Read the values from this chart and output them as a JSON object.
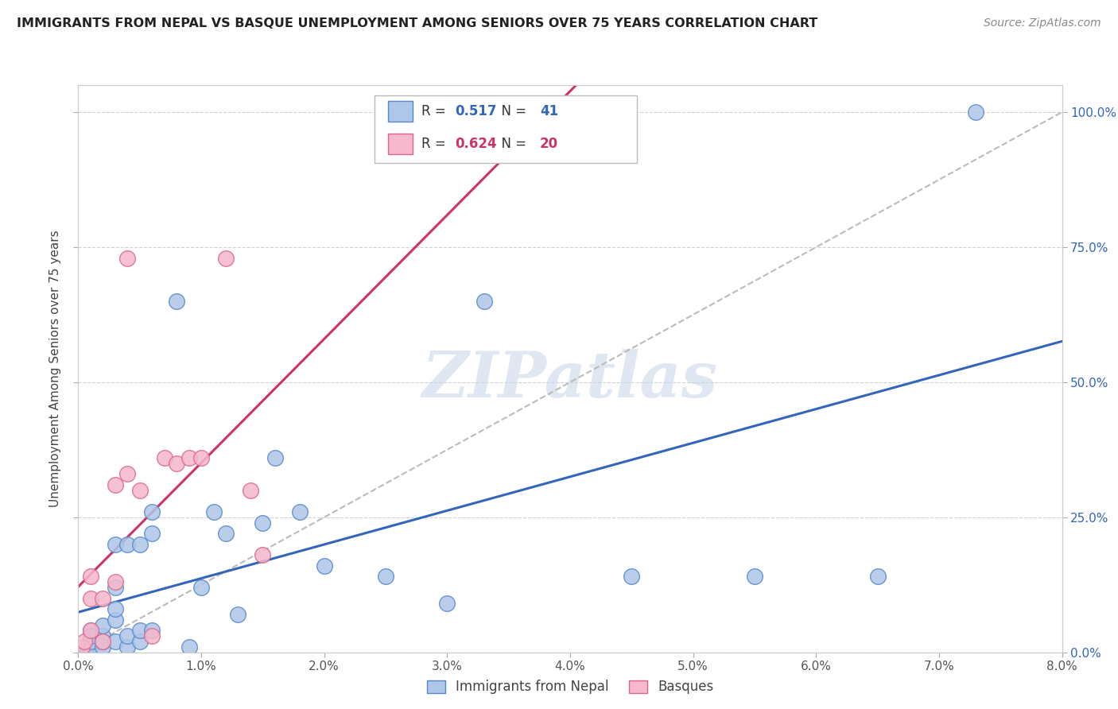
{
  "title": "IMMIGRANTS FROM NEPAL VS BASQUE UNEMPLOYMENT AMONG SENIORS OVER 75 YEARS CORRELATION CHART",
  "source": "Source: ZipAtlas.com",
  "ylabel": "Unemployment Among Seniors over 75 years",
  "xlabel_legend1": "Immigrants from Nepal",
  "xlabel_legend2": "Basques",
  "xmin": 0.0,
  "xmax": 0.08,
  "ymin": 0.0,
  "ymax": 1.05,
  "xticks": [
    0.0,
    0.01,
    0.02,
    0.03,
    0.04,
    0.05,
    0.06,
    0.07,
    0.08
  ],
  "xticklabels": [
    "0.0%",
    "1.0%",
    "2.0%",
    "3.0%",
    "4.0%",
    "5.0%",
    "6.0%",
    "7.0%",
    "8.0%"
  ],
  "yticks": [
    0.0,
    0.25,
    0.5,
    0.75,
    1.0
  ],
  "yticklabels": [
    "",
    "",
    "",
    "",
    ""
  ],
  "yticklabels_right": [
    "0.0%",
    "25.0%",
    "50.0%",
    "75.0%",
    "100.0%"
  ],
  "R_blue": 0.517,
  "N_blue": 41,
  "R_pink": 0.624,
  "N_pink": 20,
  "blue_color": "#aec6e8",
  "blue_edge": "#5588cc",
  "pink_color": "#f5b8cc",
  "pink_edge": "#dd6688",
  "blue_line_color": "#3366bb",
  "pink_line_color": "#cc3366",
  "ref_line_color": "#bbbbbb",
  "watermark": "ZIPatlas",
  "blue_scatter_x": [
    0.0005,
    0.0007,
    0.001,
    0.001,
    0.001,
    0.001,
    0.002,
    0.002,
    0.002,
    0.002,
    0.003,
    0.003,
    0.003,
    0.003,
    0.003,
    0.004,
    0.004,
    0.004,
    0.005,
    0.005,
    0.005,
    0.006,
    0.006,
    0.006,
    0.008,
    0.009,
    0.01,
    0.011,
    0.012,
    0.013,
    0.015,
    0.016,
    0.018,
    0.02,
    0.025,
    0.03,
    0.033,
    0.045,
    0.055,
    0.065,
    0.073
  ],
  "blue_scatter_y": [
    0.005,
    0.008,
    0.01,
    0.02,
    0.04,
    0.03,
    0.01,
    0.03,
    0.05,
    0.02,
    0.02,
    0.06,
    0.08,
    0.12,
    0.2,
    0.01,
    0.03,
    0.2,
    0.02,
    0.04,
    0.2,
    0.04,
    0.22,
    0.26,
    0.65,
    0.01,
    0.12,
    0.26,
    0.22,
    0.07,
    0.24,
    0.36,
    0.26,
    0.16,
    0.14,
    0.09,
    0.65,
    0.14,
    0.14,
    0.14,
    1.0
  ],
  "pink_scatter_x": [
    0.0003,
    0.0005,
    0.001,
    0.001,
    0.001,
    0.002,
    0.002,
    0.003,
    0.003,
    0.004,
    0.004,
    0.005,
    0.006,
    0.007,
    0.008,
    0.009,
    0.01,
    0.012,
    0.014,
    0.015
  ],
  "pink_scatter_y": [
    0.01,
    0.02,
    0.04,
    0.1,
    0.14,
    0.02,
    0.1,
    0.13,
    0.31,
    0.33,
    0.73,
    0.3,
    0.03,
    0.36,
    0.35,
    0.36,
    0.36,
    0.73,
    0.3,
    0.18
  ]
}
